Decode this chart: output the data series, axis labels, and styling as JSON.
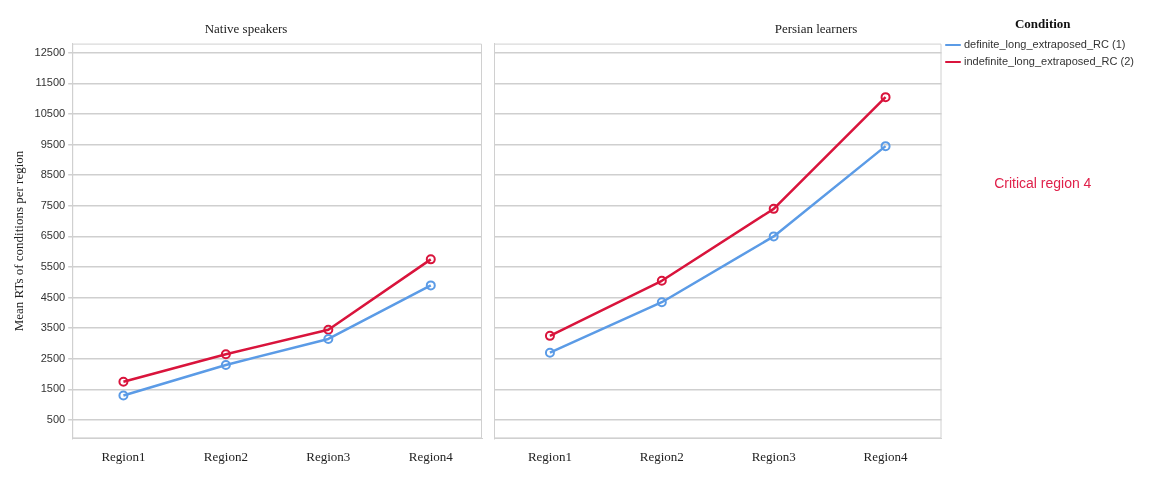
{
  "chart_data": [
    {
      "type": "line",
      "title": "Native speakers",
      "ylabel": "Mean RTs of conditions per region",
      "categories": [
        "Region1",
        "Region2",
        "Region3",
        "Region4"
      ],
      "series": [
        {
          "color": "#5b9be6",
          "values": [
            1300,
            2300,
            3150,
            4900
          ]
        },
        {
          "color": "#d9143c",
          "values": [
            1750,
            2650,
            3450,
            5750
          ]
        }
      ],
      "ylim": [
        -100,
        12800
      ],
      "yticks": [
        500,
        1500,
        2500,
        3500,
        4500,
        5500,
        6500,
        7500,
        8500,
        9500,
        10500,
        11500,
        12500
      ],
      "grid": "y",
      "marker": "circle",
      "line_style": "solid"
    },
    {
      "type": "line",
      "title": "Persian learners",
      "categories": [
        "Region1",
        "Region2",
        "Region3",
        "Region4"
      ],
      "series": [
        {
          "name": "definite_long_extraposed_RC (1)",
          "color": "#5b9be6",
          "values": [
            2700,
            4350,
            6500,
            9450
          ]
        },
        {
          "name": "indefinite_long_extraposed_RC (2)",
          "color": "#d9143c",
          "values": [
            3250,
            5050,
            7400,
            11050
          ]
        }
      ],
      "ylim": [
        -100,
        12800
      ],
      "yticks": [
        500,
        1500,
        2500,
        3500,
        4500,
        5500,
        6500,
        7500,
        8500,
        9500,
        10500,
        11500,
        12500
      ],
      "grid": "y",
      "marker": "circle",
      "line_style": "solid",
      "tick_labels": "x",
      "legend": "right",
      "legend_title": "Condition",
      "annotations": [
        "Critical region 4"
      ]
    }
  ]
}
